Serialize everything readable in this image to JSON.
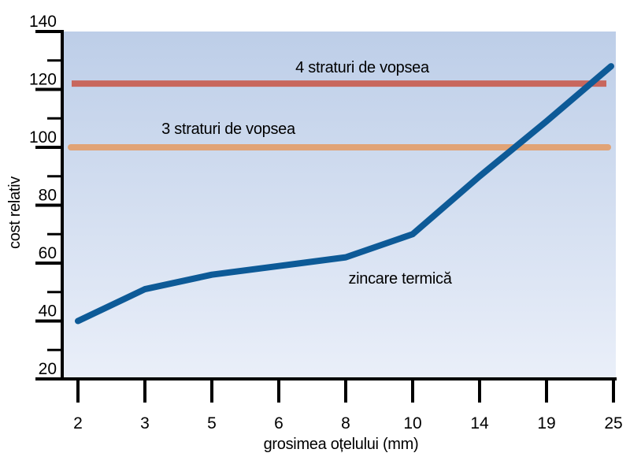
{
  "chart_data": {
    "type": "line",
    "xlabel": "grosimea oțelului (mm)",
    "ylabel": "cost relativ",
    "x_values": [
      2,
      3,
      5,
      6,
      8,
      10,
      14,
      19,
      25
    ],
    "x_tick_labels": [
      "2",
      "3",
      "5",
      "6",
      "8",
      "10",
      "14",
      "19",
      "25"
    ],
    "x_scale": "category (ticks evenly spaced, non-linear mm values)",
    "ylim": [
      20,
      140
    ],
    "y_major_ticks": [
      140,
      120,
      100,
      80,
      60,
      40,
      20
    ],
    "y_minor_step": 10,
    "grid": "off",
    "legend": "inline text annotations next to each line",
    "series": [
      {
        "name": "zincare termică",
        "kind": "curve",
        "color": "#0d5a97",
        "x": [
          2,
          3,
          5,
          6,
          8,
          10,
          14,
          19,
          25
        ],
        "values": [
          40,
          51,
          56,
          59,
          62,
          70,
          90,
          109,
          128
        ]
      },
      {
        "name": "4 straturi de vopsea",
        "kind": "hline",
        "color": "#c8675d",
        "value": 122
      },
      {
        "name": "3 straturi de vopsea",
        "kind": "hline",
        "color": "#e1a376",
        "value": 100
      }
    ]
  },
  "colors": {
    "plot_bg_top": "#bdcee8",
    "plot_bg_bottom": "#eaeff9",
    "axis": "#000000",
    "text": "#000000",
    "galvanizing_line": "#0d5a97",
    "paint4_line": "#c8675d",
    "paint3_line": "#e1a376"
  }
}
